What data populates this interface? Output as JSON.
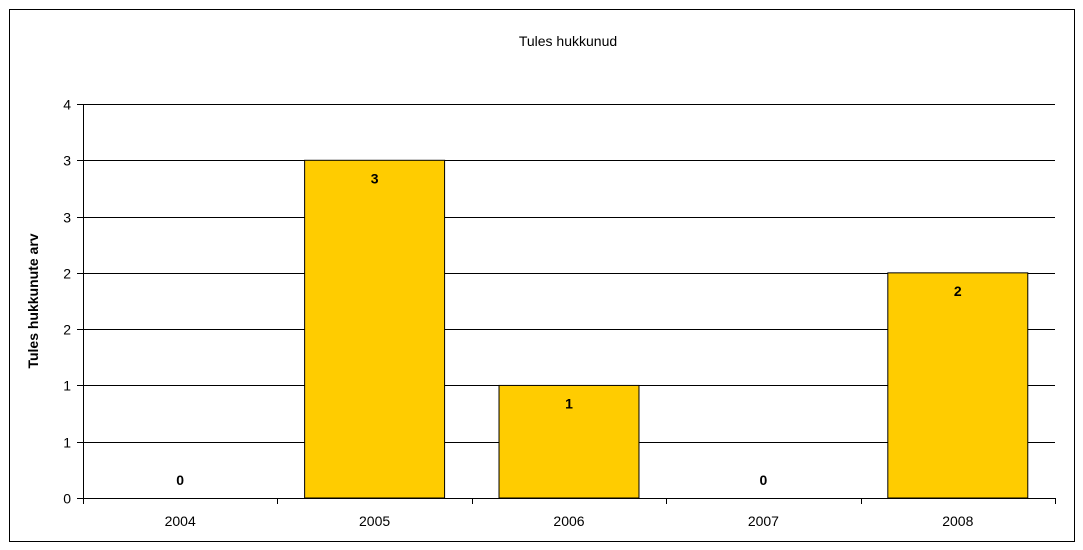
{
  "chart_data": {
    "type": "bar",
    "title": "Tules hukkunud",
    "xlabel": "",
    "ylabel": "Tules hukkunute arv",
    "categories": [
      "2004",
      "2005",
      "2006",
      "2007",
      "2008"
    ],
    "values": [
      0,
      3,
      1,
      0,
      2
    ],
    "data_labels": [
      "0",
      "3",
      "1",
      "0",
      "2"
    ],
    "ylim": [
      0,
      3.5
    ],
    "y_ticks": [
      0,
      0.5,
      1,
      1.5,
      2,
      2.5,
      3,
      3.5
    ],
    "y_tick_labels": [
      "0",
      "1",
      "1",
      "2",
      "2",
      "3",
      "3",
      "4"
    ],
    "grid": true,
    "legend": "none",
    "colors": {
      "bar": "#ffcc00",
      "bar_stroke": "#000000",
      "grid": "#000000"
    }
  }
}
